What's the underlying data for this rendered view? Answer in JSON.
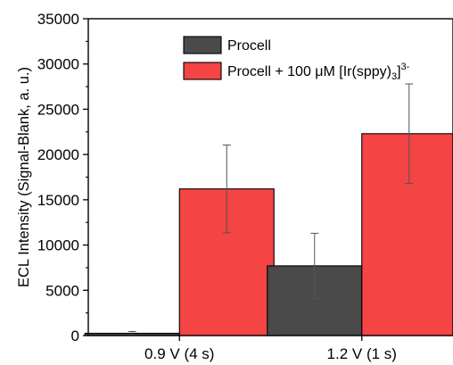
{
  "chart_data": {
    "type": "bar",
    "ylabel": "ECL Intensity (Signal-Blank, a. u.)",
    "ylim": [
      0,
      35000
    ],
    "yticks": [
      0,
      5000,
      10000,
      15000,
      20000,
      25000,
      30000,
      35000
    ],
    "categories": [
      "0.9 V (4 s)",
      "1.2 V (1 s)"
    ],
    "series": [
      {
        "name": "Procell",
        "legend_main": "Procell",
        "color": "#4a4a4a",
        "values": [
          250,
          7700
        ],
        "errors": [
          200,
          3600
        ]
      },
      {
        "name": "Procell + 100 μM [Ir(sppy)3]3-",
        "legend_main": "Procell + 100 μM [Ir(sppy)",
        "legend_sub": "3",
        "legend_bracket": "]",
        "legend_sup": "3-",
        "color": "#f44444",
        "values": [
          16200,
          22300
        ],
        "errors": [
          4850,
          5500
        ]
      }
    ],
    "legend_position": "top-center",
    "grid": false
  }
}
